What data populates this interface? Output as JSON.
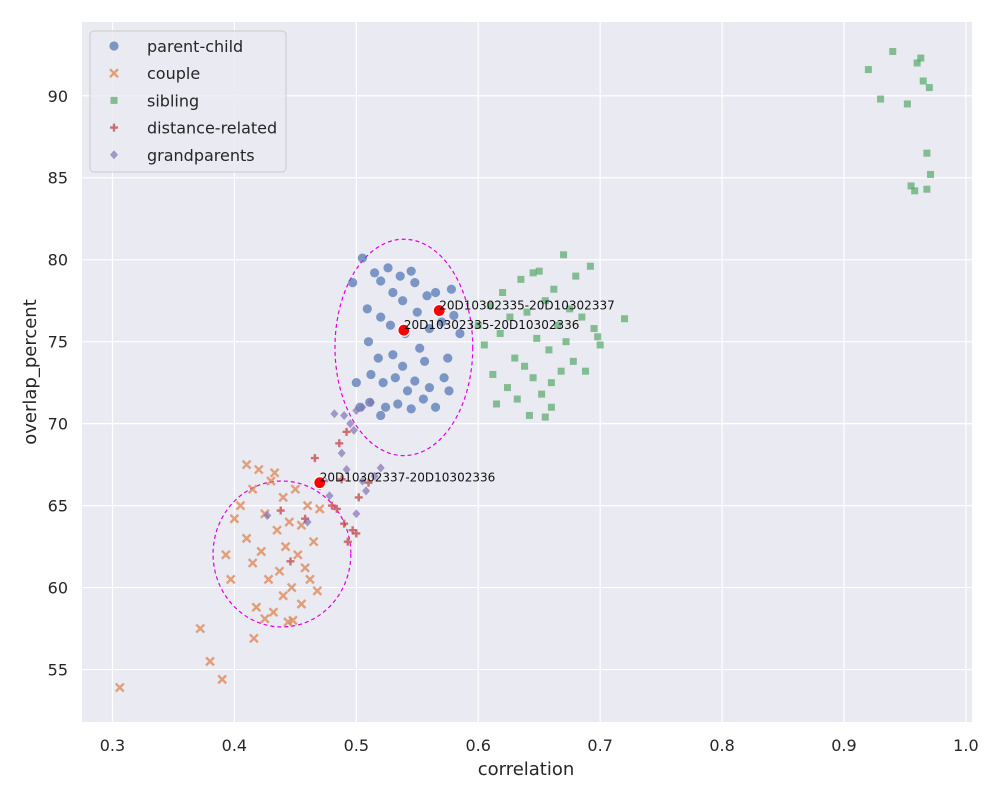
{
  "chart_data": {
    "type": "scatter",
    "title": "",
    "xlabel": "correlation",
    "ylabel": "overlap_percent",
    "xlim": [
      0.275,
      1.005
    ],
    "ylim": [
      51.8,
      94.5
    ],
    "xticks": [
      0.3,
      0.4,
      0.5,
      0.6,
      0.7,
      0.8,
      0.9,
      1.0
    ],
    "xtick_labels": [
      "0.3",
      "0.4",
      "0.5",
      "0.6",
      "0.7",
      "0.8",
      "0.9",
      "1.0"
    ],
    "yticks": [
      55,
      60,
      65,
      70,
      75,
      80,
      85,
      90
    ],
    "ytick_labels": [
      "55",
      "60",
      "65",
      "70",
      "75",
      "80",
      "85",
      "90"
    ],
    "grid": true,
    "legend_position": "top-left",
    "series": [
      {
        "name": "parent-child",
        "marker": "circle",
        "color": "#4c72b0",
        "points": [
          [
            0.497,
            78.6
          ],
          [
            0.505,
            80.1
          ],
          [
            0.509,
            77.0
          ],
          [
            0.51,
            75.0
          ],
          [
            0.512,
            73.0
          ],
          [
            0.511,
            71.3
          ],
          [
            0.515,
            79.2
          ],
          [
            0.52,
            78.7
          ],
          [
            0.52,
            76.5
          ],
          [
            0.518,
            74.0
          ],
          [
            0.522,
            72.5
          ],
          [
            0.524,
            71.0
          ],
          [
            0.526,
            79.5
          ],
          [
            0.53,
            78.0
          ],
          [
            0.528,
            76.0
          ],
          [
            0.53,
            74.2
          ],
          [
            0.532,
            72.8
          ],
          [
            0.534,
            71.2
          ],
          [
            0.536,
            79.0
          ],
          [
            0.538,
            77.5
          ],
          [
            0.54,
            75.5
          ],
          [
            0.538,
            73.5
          ],
          [
            0.542,
            72.0
          ],
          [
            0.545,
            70.9
          ],
          [
            0.548,
            78.6
          ],
          [
            0.55,
            76.8
          ],
          [
            0.552,
            74.6
          ],
          [
            0.548,
            72.6
          ],
          [
            0.555,
            71.5
          ],
          [
            0.558,
            77.8
          ],
          [
            0.56,
            75.8
          ],
          [
            0.556,
            73.8
          ],
          [
            0.56,
            72.2
          ],
          [
            0.565,
            71.0
          ],
          [
            0.57,
            76.2
          ],
          [
            0.575,
            74.0
          ],
          [
            0.572,
            72.8
          ],
          [
            0.576,
            72.0
          ],
          [
            0.58,
            76.6
          ],
          [
            0.585,
            75.5
          ],
          [
            0.578,
            78.2
          ],
          [
            0.503,
            71.0
          ],
          [
            0.5,
            72.5
          ],
          [
            0.565,
            78.0
          ],
          [
            0.52,
            70.5
          ],
          [
            0.545,
            79.3
          ]
        ]
      },
      {
        "name": "couple",
        "marker": "x",
        "color": "#dd8452",
        "points": [
          [
            0.306,
            53.9
          ],
          [
            0.372,
            57.5
          ],
          [
            0.38,
            55.5
          ],
          [
            0.39,
            54.4
          ],
          [
            0.393,
            62.0
          ],
          [
            0.397,
            60.5
          ],
          [
            0.4,
            64.2
          ],
          [
            0.405,
            65.0
          ],
          [
            0.41,
            63.0
          ],
          [
            0.415,
            61.5
          ],
          [
            0.415,
            66.0
          ],
          [
            0.42,
            67.2
          ],
          [
            0.418,
            58.8
          ],
          [
            0.425,
            64.5
          ],
          [
            0.422,
            62.2
          ],
          [
            0.428,
            60.5
          ],
          [
            0.43,
            66.5
          ],
          [
            0.432,
            58.5
          ],
          [
            0.435,
            63.5
          ],
          [
            0.437,
            61.0
          ],
          [
            0.44,
            65.5
          ],
          [
            0.44,
            59.5
          ],
          [
            0.442,
            62.5
          ],
          [
            0.445,
            64.0
          ],
          [
            0.447,
            60.0
          ],
          [
            0.448,
            58.0
          ],
          [
            0.45,
            66.0
          ],
          [
            0.452,
            62.0
          ],
          [
            0.455,
            63.8
          ],
          [
            0.455,
            59.0
          ],
          [
            0.458,
            61.2
          ],
          [
            0.46,
            65.0
          ],
          [
            0.462,
            60.5
          ],
          [
            0.465,
            62.8
          ],
          [
            0.468,
            59.8
          ],
          [
            0.47,
            64.8
          ],
          [
            0.416,
            56.9
          ],
          [
            0.425,
            58.1
          ],
          [
            0.433,
            67.0
          ],
          [
            0.444,
            57.9
          ],
          [
            0.41,
            67.5
          ]
        ]
      },
      {
        "name": "sibling",
        "marker": "square",
        "color": "#55a868",
        "points": [
          [
            0.6,
            76.0
          ],
          [
            0.605,
            74.8
          ],
          [
            0.61,
            77.2
          ],
          [
            0.612,
            73.0
          ],
          [
            0.615,
            71.2
          ],
          [
            0.618,
            75.5
          ],
          [
            0.62,
            78.0
          ],
          [
            0.624,
            72.2
          ],
          [
            0.626,
            76.5
          ],
          [
            0.63,
            74.0
          ],
          [
            0.632,
            71.5
          ],
          [
            0.635,
            78.8
          ],
          [
            0.638,
            73.5
          ],
          [
            0.64,
            76.8
          ],
          [
            0.642,
            70.5
          ],
          [
            0.645,
            72.8
          ],
          [
            0.648,
            75.2
          ],
          [
            0.65,
            79.3
          ],
          [
            0.652,
            71.8
          ],
          [
            0.655,
            77.5
          ],
          [
            0.658,
            74.5
          ],
          [
            0.66,
            72.5
          ],
          [
            0.662,
            78.2
          ],
          [
            0.665,
            76.0
          ],
          [
            0.668,
            73.2
          ],
          [
            0.67,
            80.3
          ],
          [
            0.672,
            75.0
          ],
          [
            0.675,
            77.0
          ],
          [
            0.678,
            73.8
          ],
          [
            0.68,
            79.0
          ],
          [
            0.685,
            76.5
          ],
          [
            0.688,
            73.2
          ],
          [
            0.692,
            79.6
          ],
          [
            0.695,
            75.8
          ],
          [
            0.7,
            74.8
          ],
          [
            0.72,
            76.4
          ],
          [
            0.655,
            70.4
          ],
          [
            0.645,
            79.2
          ],
          [
            0.66,
            71.0
          ],
          [
            0.698,
            75.3
          ],
          [
            0.92,
            91.6
          ],
          [
            0.93,
            89.8
          ],
          [
            0.94,
            92.7
          ],
          [
            0.952,
            89.5
          ],
          [
            0.955,
            84.5
          ],
          [
            0.958,
            84.2
          ],
          [
            0.96,
            92.0
          ],
          [
            0.963,
            92.3
          ],
          [
            0.965,
            90.9
          ],
          [
            0.968,
            84.3
          ],
          [
            0.97,
            90.5
          ],
          [
            0.968,
            86.5
          ],
          [
            0.971,
            85.2
          ]
        ]
      },
      {
        "name": "distance-related",
        "marker": "plus",
        "color": "#c44e52",
        "points": [
          [
            0.438,
            64.7
          ],
          [
            0.446,
            61.6
          ],
          [
            0.458,
            64.2
          ],
          [
            0.466,
            67.9
          ],
          [
            0.488,
            66.6
          ],
          [
            0.49,
            63.9
          ],
          [
            0.493,
            62.8
          ],
          [
            0.497,
            63.5
          ],
          [
            0.5,
            63.3
          ],
          [
            0.502,
            65.5
          ],
          [
            0.47,
            66.2
          ],
          [
            0.48,
            65.0
          ],
          [
            0.486,
            68.8
          ],
          [
            0.492,
            69.5
          ],
          [
            0.51,
            66.4
          ],
          [
            0.484,
            64.8
          ]
        ]
      },
      {
        "name": "grandparents",
        "marker": "diamond",
        "color": "#8172b3",
        "points": [
          [
            0.427,
            64.4
          ],
          [
            0.46,
            64.0
          ],
          [
            0.474,
            66.5
          ],
          [
            0.478,
            65.6
          ],
          [
            0.482,
            70.6
          ],
          [
            0.49,
            70.5
          ],
          [
            0.492,
            67.2
          ],
          [
            0.495,
            70.0
          ],
          [
            0.5,
            70.8
          ],
          [
            0.5,
            64.5
          ],
          [
            0.505,
            66.5
          ],
          [
            0.505,
            71.0
          ],
          [
            0.508,
            65.9
          ],
          [
            0.512,
            71.3
          ],
          [
            0.515,
            66.8
          ],
          [
            0.52,
            67.3
          ],
          [
            0.488,
            68.2
          ],
          [
            0.498,
            69.6
          ]
        ]
      }
    ],
    "ellipses": [
      {
        "label": "parent-child cluster",
        "cx": 0.539,
        "cy": 74.65,
        "rx": 0.0565,
        "ry": 6.6,
        "color": "#e000e0"
      },
      {
        "label": "couple cluster",
        "cx": 0.439,
        "cy": 62.05,
        "rx": 0.0565,
        "ry": 4.45,
        "color": "#e000e0"
      }
    ],
    "highlighted_points": [
      {
        "x": 0.568,
        "y": 76.9,
        "label": "20D10302335-20D10302337"
      },
      {
        "x": 0.539,
        "y": 75.7,
        "label": "20D10302335-20D10302336"
      },
      {
        "x": 0.47,
        "y": 66.4,
        "label": "20D10302337-20D10302336"
      }
    ]
  }
}
